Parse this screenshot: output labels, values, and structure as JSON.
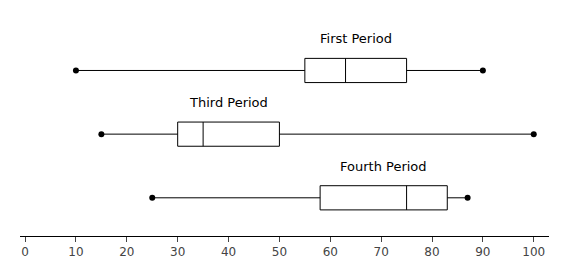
{
  "chart_data": {
    "type": "box",
    "orientation": "horizontal",
    "categories": [
      "First Period",
      "Third Period",
      "Fourth Period"
    ],
    "min": [
      10,
      15,
      25
    ],
    "q1": [
      55,
      30,
      58
    ],
    "median": [
      63,
      35,
      75
    ],
    "q3": [
      75,
      50,
      83
    ],
    "max": [
      90,
      100,
      87
    ],
    "color": "black",
    "xlim": [
      -1,
      103
    ],
    "xticks": [
      0,
      10,
      20,
      30,
      40,
      50,
      60,
      70,
      80,
      90,
      100
    ],
    "grid": false,
    "tick_labels": "x"
  }
}
